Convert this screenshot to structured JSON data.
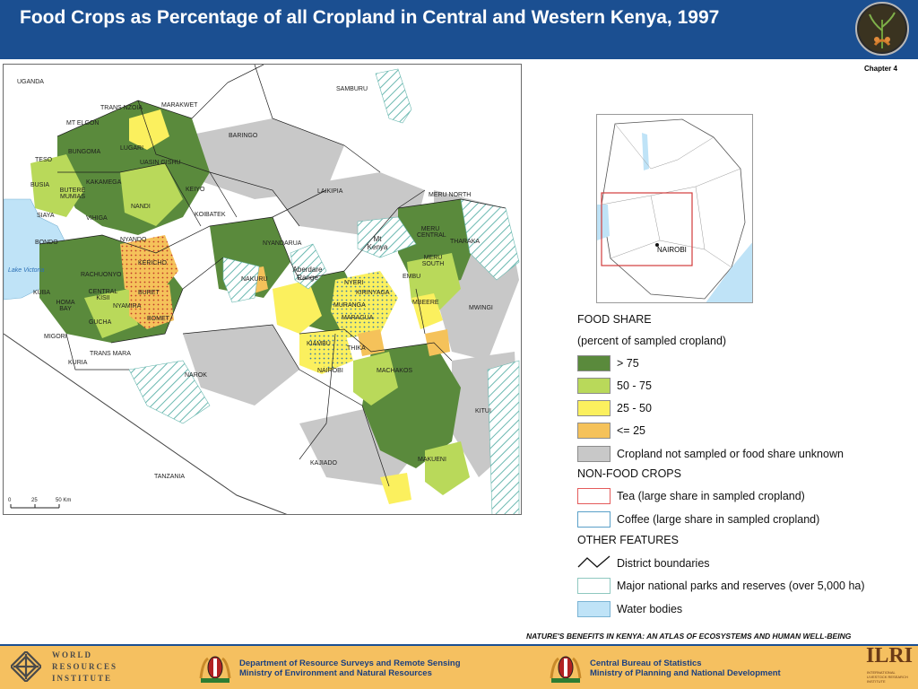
{
  "header": {
    "title": "Food Crops as Percentage of all Cropland in Central and Western Kenya, 1997"
  },
  "chapter": "Chapter 4",
  "map": {
    "labels": {
      "uganda": "UGANDA",
      "trans_nzoia": "TRANS NZOIA",
      "marakwet": "MARAKWET",
      "samburu": "SAMBURU",
      "mt_elgon": "MT ELGON",
      "baringo": "BARINGO",
      "bungoma": "BUNGOMA",
      "uasin_gishu": "UASIN GISHU",
      "lugari": "LUGARI",
      "teso": "TESO",
      "busia": "BUSIA",
      "kakamega": "KAKAMEGA",
      "butere_mumias": "BUTERE MUMIAS",
      "keiyo": "KEIYO",
      "laikipia": "LAIKIPIA",
      "meru_north": "MERU NORTH",
      "siaya": "SIAYA",
      "vihiga": "VIHIGA",
      "nandi": "NANDI",
      "koibatek": "KOIBATEK",
      "meru_central": "MERU CENTRAL",
      "tharaka": "THARAKA",
      "bondo": "BONDO",
      "nyando": "NYANDO",
      "nyandarua": "NYANDARUA",
      "mt_kenya": "Mt Kenya",
      "meru_south": "MERU SOUTH",
      "lake_victoria": "Lake Victoria",
      "kericho": "KERICHO",
      "aberdare_range": "Aberdare Range",
      "rachuonyo": "RACHUONYO",
      "nakuru": "NAKURU",
      "nyeri": "NYERI",
      "embu": "EMBU",
      "kisumu_kuba": "KUBA",
      "central_kisii": "CENTRAL KISII",
      "buret": "BURET",
      "kirinyaga": "KIRINYAGA",
      "homa_bay": "HOMA BAY",
      "nyamira": "NYAMIRA",
      "mbeere": "MBEERE",
      "mwingi": "MWINGI",
      "gucha": "GUCHA",
      "bomet": "BOMET",
      "muranga": "MURANGA",
      "maragua": "MARAGUA",
      "migori": "MIGORI",
      "kiambu": "KIAMBU",
      "thika": "THIKA",
      "trans_mara": "TRANS MARA",
      "kuria": "KURIA",
      "nairobi": "NAIROBI",
      "machakos": "MACHAKOS",
      "narok": "NAROK",
      "kitui": "KITUI",
      "tanzania": "TANZANIA",
      "kajiado": "KAJIADO",
      "makueni": "MAKUENI"
    },
    "scale": {
      "zero": "0",
      "mid": "25",
      "end": "50 Km"
    }
  },
  "inset": {
    "nairobi_label": "NAIROBI"
  },
  "legend": {
    "food_share_title": "FOOD SHARE",
    "food_share_subtitle": "(percent of sampled cropland)",
    "items": [
      {
        "label": "> 75",
        "color": "#5a8a3c"
      },
      {
        "label": "50 - 75",
        "color": "#b9d95a"
      },
      {
        "label": "25 - 50",
        "color": "#fbf05e"
      },
      {
        "label": "<= 25",
        "color": "#f5c25a"
      },
      {
        "label": "Cropland not sampled or food share unknown",
        "color": "#c8c8c8"
      }
    ],
    "nonfood_title": "NON-FOOD CROPS",
    "nonfood_items": [
      {
        "label": "Tea (large share in sampled cropland)",
        "color": "#e45b5b"
      },
      {
        "label": "Coffee (large share in sampled cropland)",
        "color": "#5aa0c8"
      }
    ],
    "other_title": "OTHER FEATURES",
    "other_items": [
      {
        "label": "District boundaries"
      },
      {
        "label": "Major national parks and reserves (over 5,000 ha)",
        "color": "#8fc8c0"
      },
      {
        "label": "Water bodies",
        "color": "#bfe3f7"
      }
    ]
  },
  "atlas_caption": "NATURE'S BENEFITS IN KENYA: AN ATLAS OF ECOSYSTEMS AND HUMAN WELL-BEING",
  "footer": {
    "wri_line1": "WORLD",
    "wri_line2": "RESOURCES",
    "wri_line3": "INSTITUTE",
    "drsrs_line1": "Department of Resource Surveys and Remote Sensing",
    "drsrs_line2": "Ministry of Environment and Natural Resources",
    "cbs_line1": "Central Bureau of Statistics",
    "cbs_line2": "Ministry of Planning and National Development",
    "ilri": "ILRI",
    "ilri_sub1": "INTERNATIONAL",
    "ilri_sub2": "LIVESTOCK RESEARCH",
    "ilri_sub3": "INSTITUTE"
  }
}
